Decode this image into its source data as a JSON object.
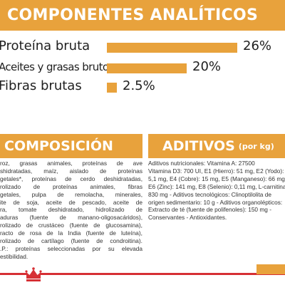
{
  "header_top": "COMPONENTES ANALÍTICOS",
  "nutrients": [
    {
      "label": "Proteína bruta",
      "value": "26%",
      "percent": 26
    },
    {
      "label": "Aceites y grasas brutos",
      "value": "20%",
      "percent": 20
    },
    {
      "label": "Fibras brutas",
      "value": "2.5%",
      "percent": 2.5
    }
  ],
  "composicion": {
    "title": "COMPOSICIÓN",
    "lines": [
      "roz, grasas animales, proteínas de ave",
      "shidratadas, maíz, aislado de proteínas",
      "getales*, proteínas de cerdo deshidratadas,",
      "rolizado de proteínas animales, fibras",
      "getales, pulpa de remolacha, minerales,",
      "ite de soja, aceite de pescado, aceite de",
      "ra, tomate deshidratado, hidrolizado de",
      "aduras (fuente de manano-oligosacáridos),",
      "rolizado de crustáceo (fuente de glucosamina),",
      "racto de rosa de la India (fuente de luteína),",
      "rolizado de cartílago (fuente de condroitina).",
      ".P.: proteínas seleccionadas por su elevada",
      "estibilidad."
    ]
  },
  "aditivos": {
    "title": "ADITIVOS",
    "subtitle": "(por kg)",
    "lines": [
      "Aditivos nutricionales: Vitamina A: 27500",
      "Vitamina D3: 700 UI, E1 (Hierro): 51 mg, E2 (Yodo):",
      "5,1 mg, E4 (Cobre): 15 mg, E5 (Manganeso): 66 mg,",
      "E6 (Zinc): 141 mg, E8 (Selenio): 0,11 mg, L-carnitina:",
      "830 mg - Aditivos tecnológicos: Clinoptilolita de",
      "origen sedimentario: 10 g - Aditivos organolépticos:",
      "Extracto de té (fuente de polifenoles): 150 mg -",
      "Conservantes - Antioxidantes."
    ]
  },
  "colors": {
    "accent": "#e8a23c",
    "brand_red": "#d62f34"
  },
  "logo_icon": "royal-canin-crown-icon"
}
